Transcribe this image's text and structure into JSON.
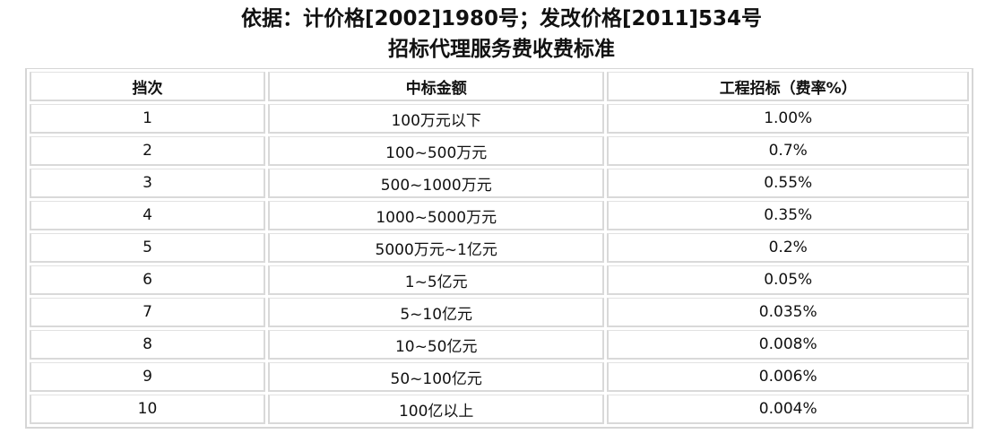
{
  "title": {
    "line1": "依据：计价格[2002]1980号；发改价格[2011]534号",
    "line2": "招标代理服务费收费标准"
  },
  "table": {
    "headers": [
      "挡次",
      "中标金额",
      "工程招标（费率%）"
    ],
    "rows": [
      [
        "1",
        "100万元以下",
        "1.00%"
      ],
      [
        "2",
        "100~500万元",
        "0.7%"
      ],
      [
        "3",
        "500~1000万元",
        "0.55%"
      ],
      [
        "4",
        "1000~5000万元",
        "0.35%"
      ],
      [
        "5",
        "5000万元~1亿元",
        "0.2%"
      ],
      [
        "6",
        "1~5亿元",
        "0.05%"
      ],
      [
        "7",
        "5~10亿元",
        "0.035%"
      ],
      [
        "8",
        "10~50亿元",
        "0.008%"
      ],
      [
        "9",
        "50~100亿元",
        "0.006%"
      ],
      [
        "10",
        "100亿以上",
        "0.004%"
      ]
    ]
  }
}
